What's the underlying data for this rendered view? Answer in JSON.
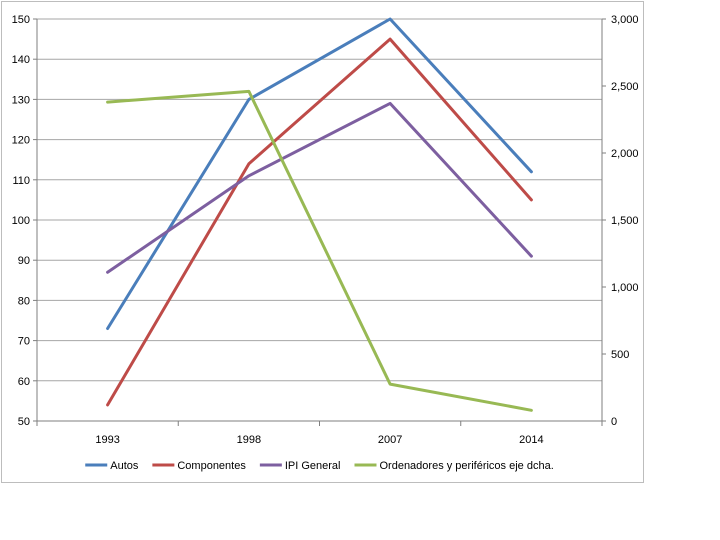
{
  "chart_data": {
    "type": "line",
    "categories": [
      "1993",
      "1998",
      "2007",
      "2014"
    ],
    "series": [
      {
        "name": "Autos",
        "axis": "left",
        "color": "#4A7EBB",
        "values": [
          73,
          130,
          150,
          112
        ]
      },
      {
        "name": "Componentes",
        "axis": "left",
        "color": "#BE4B48",
        "values": [
          54,
          114,
          145,
          105
        ]
      },
      {
        "name": "IPI General",
        "axis": "left",
        "color": "#7D5FA0",
        "values": [
          87,
          111,
          129,
          91
        ]
      },
      {
        "name": "Ordenadores y periféricos eje dcha.",
        "axis": "right",
        "color": "#98B954",
        "values": [
          2380,
          2460,
          275,
          80
        ]
      }
    ],
    "y_left": {
      "min": 50,
      "max": 150,
      "ticks": [
        "50",
        "60",
        "70",
        "80",
        "90",
        "100",
        "110",
        "120",
        "130",
        "140",
        "150"
      ]
    },
    "y_right": {
      "min": 0,
      "max": 3000,
      "ticks": [
        "0",
        "500",
        "1,000",
        "1,500",
        "2,000",
        "2,500",
        "3,000"
      ]
    },
    "grid": "horizontal",
    "legend_position": "bottom",
    "title": "",
    "xlabel": "",
    "ylabel": ""
  }
}
